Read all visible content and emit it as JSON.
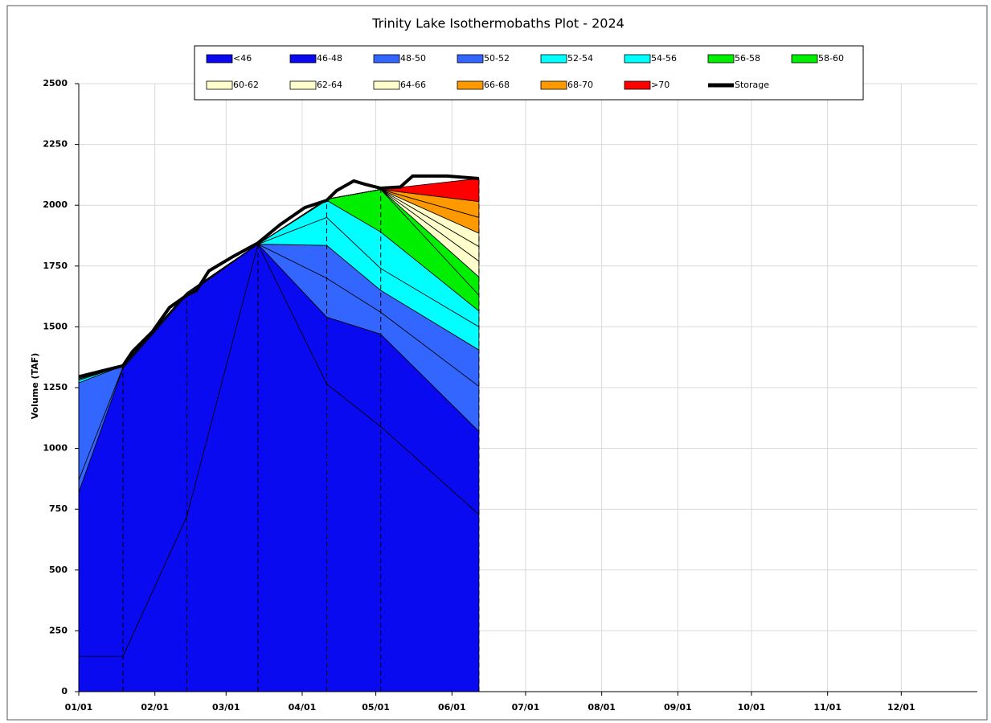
{
  "chart_data": {
    "type": "stacked_area",
    "title": "Trinity Lake Isothermobaths Plot - 2024",
    "y_label": "Volume (TAF)",
    "x": [
      0,
      18,
      44,
      73,
      101,
      123,
      163
    ],
    "xlim": [
      0,
      366
    ],
    "xticks": [
      {
        "value": 0,
        "label": "01/01"
      },
      {
        "value": 31,
        "label": "02/01"
      },
      {
        "value": 60,
        "label": "03/01"
      },
      {
        "value": 91,
        "label": "04/01"
      },
      {
        "value": 121,
        "label": "05/01"
      },
      {
        "value": 152,
        "label": "06/01"
      },
      {
        "value": 182,
        "label": "07/01"
      },
      {
        "value": 213,
        "label": "08/01"
      },
      {
        "value": 244,
        "label": "09/01"
      },
      {
        "value": 274,
        "label": "10/01"
      },
      {
        "value": 305,
        "label": "11/01"
      },
      {
        "value": 335,
        "label": "12/01"
      }
    ],
    "ylim": [
      0,
      2500
    ],
    "yticks": [
      0,
      250,
      500,
      750,
      1000,
      1250,
      1500,
      1750,
      2000,
      2250,
      2500
    ],
    "grid": true,
    "series": [
      {
        "name": "<46",
        "color": "#0a0af0",
        "values": [
          145,
          145,
          720,
          1840,
          1265,
          1090,
          728
        ]
      },
      {
        "name": "46-48",
        "color": "#0a0af0",
        "values": [
          675,
          1185,
          910,
          0,
          275,
          380,
          342
        ]
      },
      {
        "name": "48-50",
        "color": "#3366ff",
        "values": [
          50,
          5,
          5,
          0,
          160,
          90,
          185
        ]
      },
      {
        "name": "50-52",
        "color": "#3366ff",
        "values": [
          400,
          5,
          5,
          0,
          135,
          90,
          150
        ]
      },
      {
        "name": "52-54",
        "color": "#00ffff",
        "values": [
          10,
          0,
          0,
          0,
          115,
          90,
          95
        ]
      },
      {
        "name": "54-56",
        "color": "#00ffff",
        "values": [
          5,
          0,
          0,
          0,
          70,
          150,
          65
        ]
      },
      {
        "name": "56-58",
        "color": "#00ee00",
        "values": [
          0,
          0,
          0,
          0,
          5,
          175,
          65
        ]
      },
      {
        "name": "58-60",
        "color": "#00ee00",
        "values": [
          0,
          0,
          0,
          0,
          0,
          0,
          75
        ]
      },
      {
        "name": "60-62",
        "color": "#ffffcc",
        "values": [
          0,
          0,
          0,
          0,
          0,
          0,
          65
        ]
      },
      {
        "name": "62-64",
        "color": "#ffffcc",
        "values": [
          0,
          0,
          0,
          0,
          0,
          0,
          60
        ]
      },
      {
        "name": "64-66",
        "color": "#ffffcc",
        "values": [
          0,
          0,
          0,
          0,
          0,
          0,
          55
        ]
      },
      {
        "name": "66-68",
        "color": "#ff9900",
        "values": [
          0,
          0,
          0,
          0,
          0,
          0,
          65
        ]
      },
      {
        "name": "68-70",
        "color": "#ff9900",
        "values": [
          0,
          0,
          0,
          0,
          0,
          0,
          65
        ]
      },
      {
        "name": ">70",
        "color": "#ff0000",
        "values": [
          0,
          0,
          0,
          0,
          0,
          0,
          95
        ]
      },
      {
        "name": "Storage",
        "color": "#000000",
        "type": "line",
        "x": [
          0,
          18,
          22,
          30,
          37,
          44,
          48,
          53,
          63,
          73,
          82,
          92,
          101,
          105,
          112,
          117,
          123,
          131,
          136,
          150,
          163
        ],
        "values": [
          1295,
          1340,
          1400,
          1480,
          1580,
          1630,
          1650,
          1730,
          1790,
          1845,
          1920,
          1990,
          2020,
          2060,
          2100,
          2085,
          2070,
          2075,
          2120,
          2120,
          2110
        ]
      }
    ]
  }
}
